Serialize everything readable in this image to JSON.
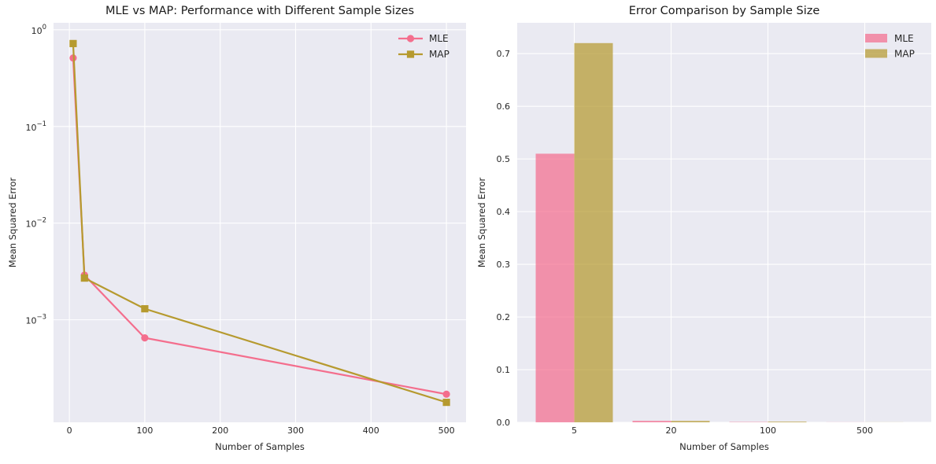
{
  "figure": {
    "background": "#ffffff",
    "axes_background": "#eaeaf2",
    "grid_color": "#ffffff",
    "text_color": "#262626",
    "title_color": "#1a1a1a"
  },
  "chart_data": [
    {
      "type": "line",
      "title": "MLE vs MAP: Performance with Different Sample Sizes",
      "xlabel": "Number of Samples",
      "ylabel": "Mean Squared Error",
      "yscale": "log",
      "x": [
        5,
        20,
        100,
        500
      ],
      "series": [
        {
          "name": "MLE",
          "values": [
            0.51,
            0.0029,
            0.00065,
            0.00017
          ],
          "color": "#f46e8d",
          "marker": "circle"
        },
        {
          "name": "MAP",
          "values": [
            0.72,
            0.0027,
            0.0013,
            0.00014
          ],
          "color": "#b69a2f",
          "marker": "square"
        }
      ],
      "xlim": [
        -21,
        526
      ],
      "ylim": [
        8.7e-05,
        1.18
      ],
      "xticks": [
        {
          "value": 0,
          "label": "0"
        },
        {
          "value": 100,
          "label": "100"
        },
        {
          "value": 200,
          "label": "200"
        },
        {
          "value": 300,
          "label": "300"
        },
        {
          "value": 400,
          "label": "400"
        },
        {
          "value": 500,
          "label": "500"
        }
      ],
      "yticks": [
        {
          "value": 1,
          "base": "10",
          "exp": "0"
        },
        {
          "value": 0.1,
          "base": "10",
          "exp": "−1"
        },
        {
          "value": 0.01,
          "base": "10",
          "exp": "−2"
        },
        {
          "value": 0.001,
          "base": "10",
          "exp": "−3"
        }
      ],
      "legend": {
        "position": "upper right",
        "entries": [
          "MLE",
          "MAP"
        ]
      },
      "grid": true
    },
    {
      "type": "bar",
      "title": "Error Comparison by Sample Size",
      "xlabel": "Number of Samples",
      "ylabel": "Mean Squared Error",
      "categories": [
        "5",
        "20",
        "100",
        "500"
      ],
      "series": [
        {
          "name": "MLE",
          "values": [
            0.51,
            0.0029,
            0.00065,
            0.00017
          ],
          "color": "#f46e8d"
        },
        {
          "name": "MAP",
          "values": [
            0.72,
            0.0027,
            0.0013,
            0.00014
          ],
          "color": "#b69a2f"
        }
      ],
      "bar_alpha": 0.72,
      "ylim": [
        0,
        0.7585
      ],
      "yticks": [
        {
          "value": 0.0,
          "label": "0.0"
        },
        {
          "value": 0.1,
          "label": "0.1"
        },
        {
          "value": 0.2,
          "label": "0.2"
        },
        {
          "value": 0.3,
          "label": "0.3"
        },
        {
          "value": 0.4,
          "label": "0.4"
        },
        {
          "value": 0.5,
          "label": "0.5"
        },
        {
          "value": 0.6,
          "label": "0.6"
        },
        {
          "value": 0.7,
          "label": "0.7"
        }
      ],
      "legend": {
        "position": "upper right",
        "entries": [
          "MLE",
          "MAP"
        ]
      },
      "grid": true
    }
  ]
}
